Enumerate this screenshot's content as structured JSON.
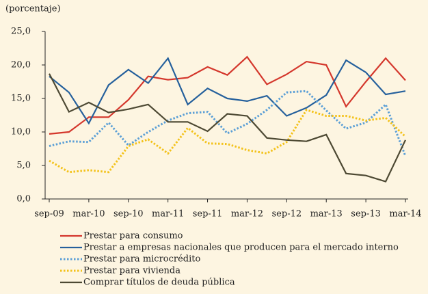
{
  "chart_data": {
    "type": "line",
    "subtitle": "(porcentaje)",
    "categories": [
      "sep-09",
      null,
      "mar-10",
      null,
      "sep-10",
      null,
      "mar-11",
      null,
      "sep-11",
      null,
      "mar-12",
      null,
      "sep-12",
      null,
      "mar-13",
      null,
      "sep-13",
      null,
      "mar-14"
    ],
    "series": [
      {
        "name": "Prestar para consumo",
        "color": "#d4372c",
        "line_style": "solid",
        "values": [
          9.7,
          10.0,
          12.2,
          12.2,
          14.8,
          18.3,
          17.8,
          18.1,
          19.7,
          18.5,
          21.2,
          17.1,
          18.6,
          20.5,
          20.0,
          13.8,
          17.5,
          21.0,
          17.7
        ]
      },
      {
        "name": "Prestar a empresas nacionales que producen para el mercado interno",
        "color": "#25609c",
        "line_style": "solid",
        "values": [
          18.3,
          15.9,
          11.3,
          17.0,
          19.3,
          17.3,
          21.0,
          14.1,
          16.5,
          15.0,
          14.6,
          15.4,
          12.4,
          13.6,
          15.5,
          20.7,
          18.9,
          15.6,
          16.1
        ]
      },
      {
        "name": "Prestar para microcrédito",
        "color": "#5b9fd6",
        "line_style": "dotted",
        "values": [
          7.9,
          8.6,
          8.5,
          11.4,
          8.0,
          10.0,
          11.7,
          12.8,
          13.0,
          9.8,
          11.2,
          13.3,
          15.9,
          16.1,
          13.2,
          10.5,
          11.4,
          14.1,
          6.4
        ]
      },
      {
        "name": "Prestar para vivienda",
        "color": "#f3c21a",
        "line_style": "dotted",
        "values": [
          5.7,
          4.0,
          4.3,
          4.0,
          7.9,
          8.9,
          6.8,
          10.6,
          8.3,
          8.2,
          7.3,
          6.8,
          8.5,
          13.3,
          12.4,
          12.4,
          11.7,
          12.1,
          9.3
        ]
      },
      {
        "name": "Comprar títulos de deuda pública",
        "color": "#4d4933",
        "line_style": "solid",
        "values": [
          18.7,
          13.0,
          14.4,
          12.9,
          13.4,
          14.1,
          11.5,
          11.5,
          10.1,
          12.7,
          12.4,
          9.1,
          8.8,
          8.6,
          9.6,
          3.8,
          3.5,
          2.6,
          8.8
        ]
      }
    ],
    "ylim": [
      0,
      25
    ],
    "yticks": [
      {
        "value": 0,
        "label": "0,0"
      },
      {
        "value": 5,
        "label": "5,0"
      },
      {
        "value": 10,
        "label": "10,0"
      },
      {
        "value": 15,
        "label": "15,0"
      },
      {
        "value": 20,
        "label": "20,0"
      },
      {
        "value": 25,
        "label": "25,0"
      }
    ],
    "grid": false
  }
}
